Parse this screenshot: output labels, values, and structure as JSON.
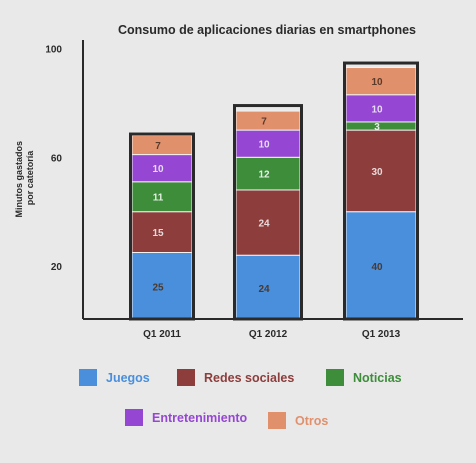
{
  "chart_data": {
    "type": "bar",
    "stacked": true,
    "title": "Consumo de aplicaciones diarias en smartphones",
    "ylabel": "Minutos gastados por catetoría",
    "ylim": [
      0,
      100
    ],
    "yticks": [
      20,
      60,
      100
    ],
    "categories": [
      "Q1 2011",
      "Q1 2012",
      "Q1 2013"
    ],
    "series": [
      {
        "name": "Juegos",
        "color": "#4a8fdc",
        "label_color": "#4a3a30",
        "values": [
          25,
          24,
          40
        ]
      },
      {
        "name": "Redes sociales",
        "color": "#8d3d3c",
        "label_color": "#e8dada",
        "values": [
          15,
          24,
          30
        ]
      },
      {
        "name": "Noticias",
        "color": "#3d8d3b",
        "label_color": "#e4f0e4",
        "values": [
          11,
          12,
          3
        ]
      },
      {
        "name": "Entretenimiento",
        "color": "#9547d3",
        "label_color": "#e6dcf0",
        "values": [
          10,
          10,
          10
        ]
      },
      {
        "name": "Otros",
        "color": "#e1906c",
        "label_color": "#5a3a2a",
        "values": [
          7,
          7,
          10
        ]
      }
    ],
    "legend": {
      "position": "bottom"
    }
  }
}
